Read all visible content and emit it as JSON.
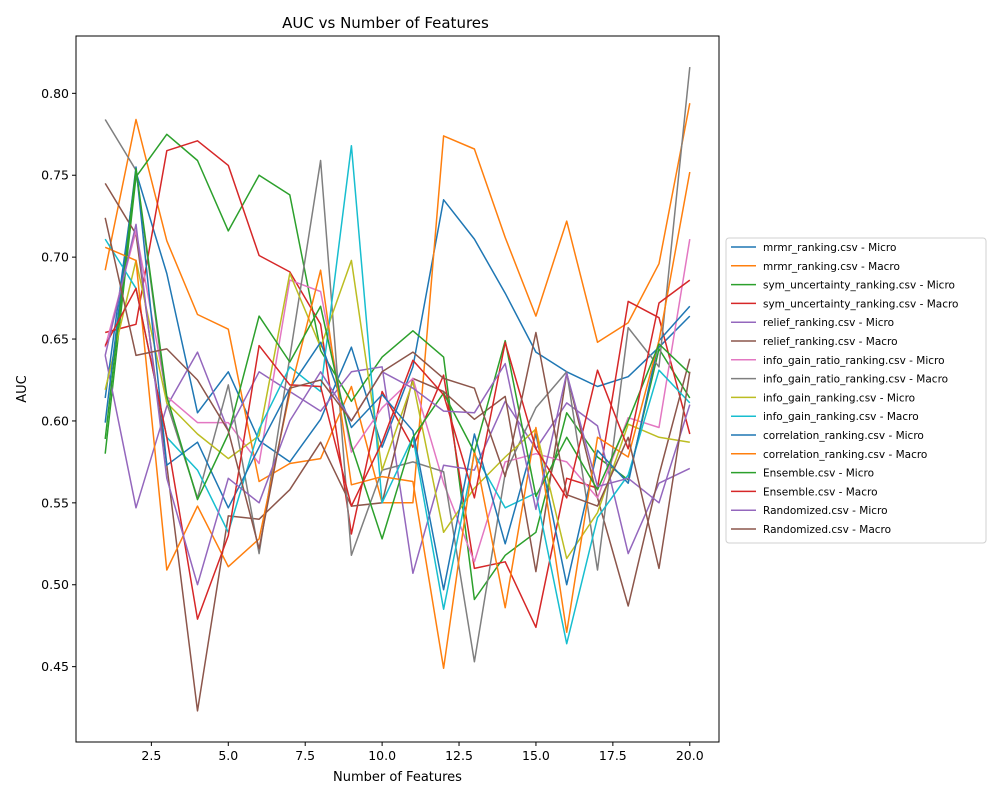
{
  "chart_data": {
    "type": "line",
    "title": "AUC vs Number of Features",
    "xlabel": "Number of Features",
    "ylabel": "AUC",
    "xlim": [
      0.05,
      20.95
    ],
    "ylim": [
      0.404,
      0.835
    ],
    "xticks": [
      2.5,
      5.0,
      7.5,
      10.0,
      12.5,
      15.0,
      17.5,
      20.0
    ],
    "xtick_labels": [
      "2.5",
      "5.0",
      "7.5",
      "10.0",
      "12.5",
      "15.0",
      "17.5",
      "20.0"
    ],
    "yticks": [
      0.45,
      0.5,
      0.55,
      0.6,
      0.65,
      0.7,
      0.75,
      0.8
    ],
    "ytick_labels": [
      "0.45",
      "0.50",
      "0.55",
      "0.60",
      "0.65",
      "0.70",
      "0.75",
      "0.80"
    ],
    "grid": false,
    "legend_position": "right-outside",
    "x": [
      1,
      2,
      3,
      4,
      5,
      6,
      7,
      8,
      9,
      10,
      11,
      12,
      13,
      14,
      15,
      16,
      17,
      18,
      19,
      20
    ],
    "series": [
      {
        "name": "mrmr_ranking.csv - Micro",
        "color": "#1f77b4",
        "values": [
          0.614,
          0.752,
          0.69,
          0.605,
          0.63,
          0.588,
          0.575,
          0.601,
          0.645,
          0.584,
          0.633,
          0.735,
          0.711,
          0.678,
          0.642,
          0.63,
          0.621,
          0.627,
          0.645,
          0.664
        ]
      },
      {
        "name": "mrmr_ranking.csv - Macro",
        "color": "#ff7f0e",
        "values": [
          0.692,
          0.784,
          0.71,
          0.665,
          0.656,
          0.563,
          0.574,
          0.577,
          0.621,
          0.55,
          0.55,
          0.774,
          0.766,
          0.712,
          0.664,
          0.722,
          0.648,
          0.66,
          0.696,
          0.794
        ]
      },
      {
        "name": "sym_uncertainty_ranking.csv - Micro",
        "color": "#2ca02c",
        "values": [
          0.58,
          0.749,
          0.775,
          0.759,
          0.716,
          0.75,
          0.738,
          0.643,
          0.612,
          0.639,
          0.655,
          0.639,
          0.491,
          0.518,
          0.532,
          0.605,
          0.578,
          0.564,
          0.644,
          0.614
        ]
      },
      {
        "name": "sym_uncertainty_ranking.csv - Macro",
        "color": "#d62728",
        "values": [
          0.654,
          0.659,
          0.765,
          0.771,
          0.756,
          0.701,
          0.691,
          0.659,
          0.531,
          0.618,
          0.584,
          0.628,
          0.51,
          0.514,
          0.474,
          0.565,
          0.559,
          0.673,
          0.663,
          0.592
        ]
      },
      {
        "name": "relief_ranking.csv - Micro",
        "color": "#9467bd",
        "values": [
          0.64,
          0.547,
          0.609,
          0.642,
          0.594,
          0.63,
          0.618,
          0.606,
          0.63,
          0.633,
          0.507,
          0.573,
          0.57,
          0.612,
          0.583,
          0.611,
          0.597,
          0.519,
          0.562,
          0.571
        ]
      },
      {
        "name": "relief_ranking.csv - Macro",
        "color": "#8c564b",
        "values": [
          0.745,
          0.714,
          0.573,
          0.423,
          0.542,
          0.54,
          0.558,
          0.587,
          0.548,
          0.55,
          0.626,
          0.618,
          0.601,
          0.615,
          0.508,
          0.629,
          0.553,
          0.487,
          0.567,
          0.638
        ]
      },
      {
        "name": "info_gain_ratio_ranking.csv - Micro",
        "color": "#e377c2",
        "values": [
          0.645,
          0.716,
          0.615,
          0.599,
          0.599,
          0.574,
          0.686,
          0.679,
          0.581,
          0.608,
          0.626,
          0.562,
          0.514,
          0.575,
          0.58,
          0.575,
          0.553,
          0.602,
          0.596,
          0.711
        ]
      },
      {
        "name": "info_gain_ratio_ranking.csv - Macro",
        "color": "#7f7f7f",
        "values": [
          0.784,
          0.753,
          0.611,
          0.553,
          0.622,
          0.519,
          0.639,
          0.759,
          0.518,
          0.57,
          0.575,
          0.569,
          0.453,
          0.568,
          0.608,
          0.63,
          0.509,
          0.657,
          0.633,
          0.816
        ]
      },
      {
        "name": "info_gain_ranking.csv - Micro",
        "color": "#bcbd22",
        "values": [
          0.619,
          0.698,
          0.611,
          0.592,
          0.577,
          0.591,
          0.69,
          0.645,
          0.698,
          0.57,
          0.624,
          0.532,
          0.559,
          0.578,
          0.595,
          0.516,
          0.544,
          0.598,
          0.59,
          0.587
        ]
      },
      {
        "name": "info_gain_ranking.csv - Macro",
        "color": "#17becf",
        "values": [
          0.711,
          0.681,
          0.59,
          0.57,
          0.532,
          0.595,
          0.633,
          0.618,
          0.768,
          0.55,
          0.59,
          0.485,
          0.58,
          0.547,
          0.556,
          0.464,
          0.541,
          0.567,
          0.631,
          0.611
        ]
      },
      {
        "name": "correlation_ranking.csv - Micro",
        "color": "#1f77b4",
        "values": [
          0.599,
          0.755,
          0.573,
          0.587,
          0.547,
          0.584,
          0.62,
          0.648,
          0.596,
          0.616,
          0.594,
          0.497,
          0.592,
          0.525,
          0.592,
          0.5,
          0.582,
          0.562,
          0.649,
          0.67
        ]
      },
      {
        "name": "correlation_ranking.csv - Macro",
        "color": "#ff7f0e",
        "values": [
          0.706,
          0.698,
          0.509,
          0.548,
          0.511,
          0.528,
          0.617,
          0.692,
          0.561,
          0.566,
          0.563,
          0.449,
          0.582,
          0.486,
          0.596,
          0.471,
          0.59,
          0.578,
          0.649,
          0.752
        ]
      },
      {
        "name": "Ensemble.csv - Micro",
        "color": "#2ca02c",
        "values": [
          0.589,
          0.754,
          0.615,
          0.552,
          0.592,
          0.664,
          0.636,
          0.67,
          0.585,
          0.528,
          0.59,
          0.617,
          0.581,
          0.649,
          0.554,
          0.59,
          0.558,
          0.6,
          0.647,
          0.629
        ]
      },
      {
        "name": "Ensemble.csv - Macro",
        "color": "#d62728",
        "values": [
          0.646,
          0.681,
          0.59,
          0.479,
          0.53,
          0.646,
          0.622,
          0.621,
          0.548,
          0.587,
          0.637,
          0.616,
          0.553,
          0.648,
          0.583,
          0.553,
          0.631,
          0.583,
          0.672,
          0.686
        ]
      },
      {
        "name": "Randomized.csv - Micro",
        "color": "#9467bd",
        "values": [
          0.64,
          0.72,
          0.565,
          0.5,
          0.565,
          0.55,
          0.6,
          0.63,
          0.6,
          0.63,
          0.62,
          0.606,
          0.605,
          0.635,
          0.546,
          0.629,
          0.56,
          0.565,
          0.55,
          0.61
        ]
      },
      {
        "name": "Randomized.csv - Macro",
        "color": "#8c564b",
        "values": [
          0.724,
          0.64,
          0.644,
          0.625,
          0.594,
          0.522,
          0.62,
          0.625,
          0.6,
          0.63,
          0.642,
          0.626,
          0.62,
          0.566,
          0.654,
          0.555,
          0.548,
          0.59,
          0.51,
          0.63
        ]
      }
    ]
  }
}
